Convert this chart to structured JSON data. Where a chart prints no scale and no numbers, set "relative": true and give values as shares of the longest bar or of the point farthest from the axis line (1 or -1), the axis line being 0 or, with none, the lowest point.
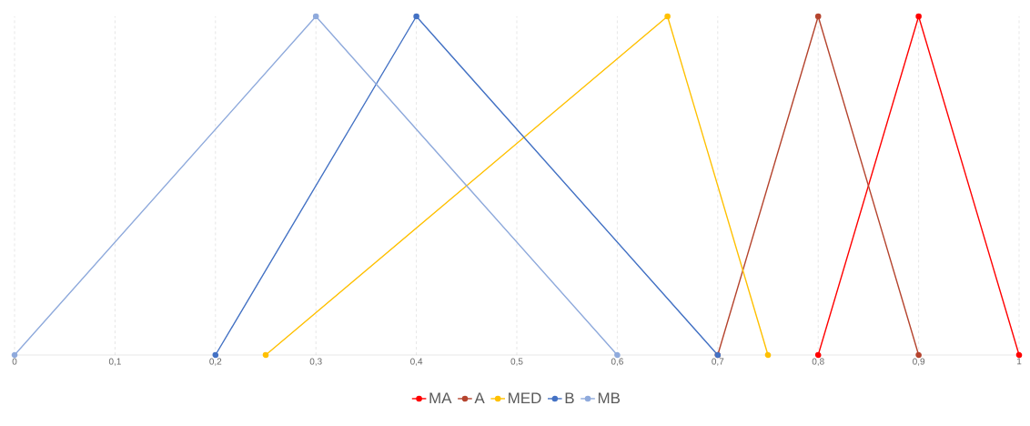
{
  "chart_data": {
    "type": "line",
    "relative": true,
    "xlim": [
      0,
      1
    ],
    "xticks": [
      0,
      {
        "value": 0.1,
        "label": "0,1"
      },
      {
        "value": 0.2,
        "label": "0,2"
      },
      {
        "value": 0.3,
        "label": "0,3"
      },
      {
        "value": 0.4,
        "label": "0,4"
      },
      {
        "value": 0.5,
        "label": "0,5"
      },
      {
        "value": 0.6,
        "label": "0,6"
      },
      {
        "value": 0.7,
        "label": "0,7"
      },
      {
        "value": 0.8,
        "label": "0,8"
      },
      {
        "value": 0.9,
        "label": "0,9"
      },
      1
    ],
    "grid": "x",
    "legend": "bottom",
    "marker": "circle",
    "line_style": "solid",
    "series": [
      {
        "name": "MA",
        "color": "#ff0000",
        "x": [
          0.8,
          0.9,
          1
        ],
        "values": [
          0,
          1,
          0
        ]
      },
      {
        "name": "A",
        "color": "#b5442e",
        "x": [
          0.7,
          0.8,
          0.9
        ],
        "values": [
          0,
          1,
          0
        ]
      },
      {
        "name": "MED",
        "color": "#ffc000",
        "x": [
          0.25,
          0.65,
          0.75
        ],
        "values": [
          0,
          1,
          0
        ]
      },
      {
        "name": "B",
        "color": "#4472c4",
        "x": [
          0.2,
          0.4,
          0.7
        ],
        "values": [
          0,
          1,
          0
        ]
      },
      {
        "name": "MB",
        "color": "#8faadc",
        "x": [
          0,
          0.3,
          0.6
        ],
        "values": [
          0,
          1,
          0
        ]
      }
    ]
  }
}
